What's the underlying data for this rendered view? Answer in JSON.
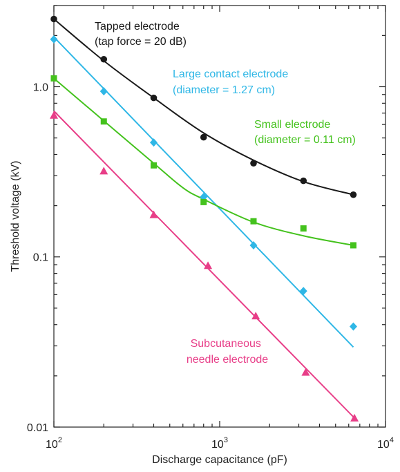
{
  "chart_data": {
    "type": "scatter",
    "xlabel": "Discharge capacitance (pF)",
    "ylabel": "Threshold voltage (kV)",
    "x_scale": "log",
    "y_scale": "log",
    "xlim": [
      100,
      10000
    ],
    "ylim": [
      0.01,
      3
    ],
    "x_ticks": [
      {
        "value": 100,
        "base": "10",
        "exp": "2"
      },
      {
        "value": 1000,
        "base": "10",
        "exp": "3"
      },
      {
        "value": 10000,
        "base": "10",
        "exp": "4"
      }
    ],
    "y_ticks": [
      {
        "value": 0.01,
        "label": "0.01"
      },
      {
        "value": 0.1,
        "label": "0.1"
      },
      {
        "value": 1,
        "label": "1.0"
      }
    ],
    "series": [
      {
        "label_lines": [
          "Tapped electrode",
          "(tap force = 20 dB)"
        ],
        "color": "#1a1a1a",
        "marker": "circle",
        "x": [
          100,
          200,
          400,
          800,
          1600,
          3200,
          6400
        ],
        "y": [
          2.5,
          1.45,
          0.86,
          0.505,
          0.355,
          0.28,
          0.232
        ],
        "fit_x": [
          100,
          200,
          400,
          800,
          1600,
          3200,
          6400
        ],
        "fit_y": [
          2.5,
          1.42,
          0.86,
          0.535,
          0.37,
          0.277,
          0.232
        ]
      },
      {
        "label_lines": [
          "Large contact electrode",
          "(diameter = 1.27 cm)"
        ],
        "color": "#2fb7e6",
        "marker": "diamond",
        "x": [
          100,
          200,
          400,
          800,
          1600,
          3200,
          6400
        ],
        "y": [
          1.9,
          0.94,
          0.47,
          0.225,
          0.117,
          0.063,
          0.039
        ],
        "fit_x": [
          100,
          6400
        ],
        "fit_y": [
          1.96,
          0.0295
        ]
      },
      {
        "label_lines": [
          "Small electrode",
          "(diameter = 0.11 cm)"
        ],
        "color": "#44c21d",
        "marker": "square",
        "x": [
          100,
          200,
          400,
          800,
          1600,
          3200,
          6400
        ],
        "y": [
          1.12,
          0.625,
          0.345,
          0.21,
          0.162,
          0.147,
          0.117
        ],
        "fit_x": [
          100,
          200,
          400,
          600,
          800,
          1600,
          3200,
          6400
        ],
        "fit_y": [
          1.12,
          0.63,
          0.355,
          0.255,
          0.218,
          0.16,
          0.133,
          0.117
        ]
      },
      {
        "label_lines": [
          "Subcutaneous",
          "needle electrode"
        ],
        "color": "#e83e88",
        "marker": "triangle",
        "x": [
          100,
          200,
          400,
          850,
          1650,
          3300,
          6500
        ],
        "y": [
          0.68,
          0.32,
          0.177,
          0.089,
          0.045,
          0.021,
          0.0113
        ],
        "fit_x": [
          100,
          6500
        ],
        "fit_y": [
          0.72,
          0.0113
        ]
      }
    ]
  }
}
